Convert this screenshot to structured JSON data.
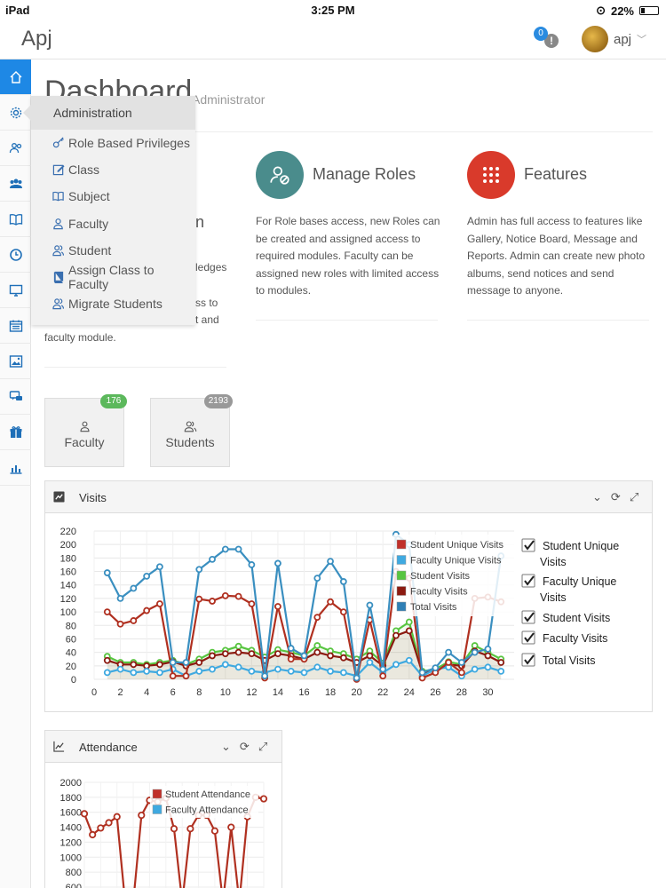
{
  "status_bar": {
    "device": "iPad",
    "time": "3:25 PM",
    "battery": "22%"
  },
  "header": {
    "brand": "Apj",
    "notifications_count": "0",
    "user_name": "apj"
  },
  "sidebar": {
    "icons": [
      "home-icon",
      "gear-icon",
      "users-icon",
      "group-icon",
      "book-icon",
      "clock-icon",
      "monitor-icon",
      "calendar-icon",
      "image-icon",
      "chat-icon",
      "gift-icon",
      "bar-chart-icon"
    ],
    "active_index": 0
  },
  "page": {
    "title": "Dashboard",
    "subtitle": "Administrator"
  },
  "dropdown": {
    "header": "Administration",
    "items": [
      {
        "label": "Role Based Privileges",
        "icon": "key-icon"
      },
      {
        "label": "Class",
        "icon": "edit-icon"
      },
      {
        "label": "Subject",
        "icon": "book-open-icon"
      },
      {
        "label": "Faculty",
        "icon": "user-icon"
      },
      {
        "label": "Student",
        "icon": "users-icon"
      },
      {
        "label": "Assign Class to Faculty",
        "icon": "book-icon"
      },
      {
        "label": "Migrate Students",
        "icon": "users-icon"
      }
    ]
  },
  "left_partial": {
    "title_fragment": "n",
    "line1": "ledges",
    "line2": "ss to",
    "line3": "t and",
    "line4": "faculty module."
  },
  "cards": [
    {
      "title": "Manage Roles",
      "color": "#4a8c8c",
      "icon": "user-block-icon",
      "description": "For Role bases access, new Roles can be created and assigned access to required modules. Faculty can be assigned new roles with limited access to modules."
    },
    {
      "title": "Features",
      "color": "#d93a2b",
      "icon": "grid-dots-icon",
      "description": "Admin has full access to features like Gallery, Notice Board, Message and Reports. Admin can create new photo albums, send notices and send message to anyone."
    }
  ],
  "tiles": [
    {
      "label": "Faculty",
      "badge": "176",
      "badge_color": "#5cb85c",
      "icon": "user-icon"
    },
    {
      "label": "Students",
      "badge": "2193",
      "badge_color": "#999999",
      "icon": "users-icon"
    }
  ],
  "panels": {
    "visits": {
      "title": "Visits"
    },
    "attendance": {
      "title": "Attendance"
    }
  },
  "chart_data": [
    {
      "type": "line",
      "title": "Visits",
      "x": [
        1,
        2,
        3,
        4,
        5,
        6,
        7,
        8,
        9,
        10,
        11,
        12,
        13,
        14,
        15,
        16,
        17,
        18,
        19,
        20,
        21,
        22,
        23,
        24,
        25,
        26,
        27,
        28,
        29,
        30,
        31
      ],
      "xticks": [
        0,
        2,
        4,
        6,
        8,
        10,
        12,
        14,
        16,
        18,
        20,
        22,
        24,
        26,
        28,
        30
      ],
      "xlim": [
        0,
        32
      ],
      "ylim": [
        0,
        220
      ],
      "yticks": [
        0,
        20,
        40,
        60,
        80,
        100,
        120,
        140,
        160,
        180,
        200,
        220
      ],
      "grid": true,
      "legend_inside": [
        "Student Unique Visits",
        "Faculty Unique Visits",
        "Student Visits",
        "Faculty Visits",
        "Total Visits"
      ],
      "legend_checklist": [
        "Student Unique Visits",
        "Faculty Unique Visits",
        "Student Visits",
        "Faculty Visits",
        "Total Visits"
      ],
      "series": [
        {
          "name": "Total Visits",
          "color": "#3a8fc0",
          "values": [
            158,
            120,
            135,
            153,
            167,
            25,
            25,
            163,
            178,
            193,
            193,
            170,
            5,
            172,
            46,
            35,
            150,
            175,
            145,
            2,
            110,
            15,
            215,
            200,
            10,
            17,
            40,
            25,
            40,
            45,
            183
          ]
        },
        {
          "name": "Student Unique Visits",
          "color": "#b03020",
          "values": [
            100,
            82,
            87,
            102,
            112,
            5,
            5,
            119,
            116,
            124,
            123,
            112,
            2,
            108,
            30,
            30,
            92,
            115,
            100,
            0,
            88,
            5,
            160,
            150,
            2,
            10,
            25,
            10,
            120,
            122,
            115
          ]
        },
        {
          "name": "Student Visits",
          "color": "#58c540",
          "values": [
            34,
            25,
            25,
            22,
            25,
            28,
            22,
            30,
            40,
            43,
            49,
            43,
            33,
            44,
            40,
            35,
            50,
            42,
            38,
            30,
            42,
            24,
            72,
            85,
            12,
            15,
            26,
            22,
            50,
            40,
            30
          ]
        },
        {
          "name": "Faculty Visits",
          "color": "#8b1a10",
          "values": [
            28,
            22,
            22,
            20,
            22,
            26,
            20,
            25,
            35,
            38,
            40,
            38,
            28,
            38,
            35,
            30,
            40,
            35,
            32,
            25,
            35,
            20,
            65,
            72,
            10,
            12,
            22,
            20,
            42,
            35,
            25
          ]
        },
        {
          "name": "Faculty Unique Visits",
          "color": "#3fa9e0",
          "values": [
            10,
            15,
            10,
            12,
            10,
            15,
            5,
            12,
            15,
            22,
            18,
            12,
            10,
            15,
            12,
            10,
            18,
            12,
            10,
            5,
            25,
            10,
            22,
            28,
            5,
            15,
            18,
            5,
            15,
            18,
            12
          ]
        }
      ]
    },
    {
      "type": "line",
      "title": "Attendance",
      "ylim": [
        600,
        2000
      ],
      "yticks": [
        600,
        800,
        1000,
        1200,
        1400,
        1600,
        1800,
        2000
      ],
      "grid": true,
      "legend_inside": [
        "Student Attendance",
        "Faculty Attendance"
      ],
      "series": [
        {
          "name": "Student Attendance",
          "color": "#b03020",
          "values": [
            1580,
            1300,
            1390,
            1460,
            1540,
            400,
            400,
            1560,
            1760,
            1740,
            1790,
            1380,
            400,
            1380,
            1560,
            1560,
            1350,
            400,
            1400,
            400,
            1540,
            1800,
            1780
          ]
        },
        {
          "name": "Faculty Attendance",
          "color": "#3fa9e0",
          "values": []
        }
      ]
    }
  ]
}
